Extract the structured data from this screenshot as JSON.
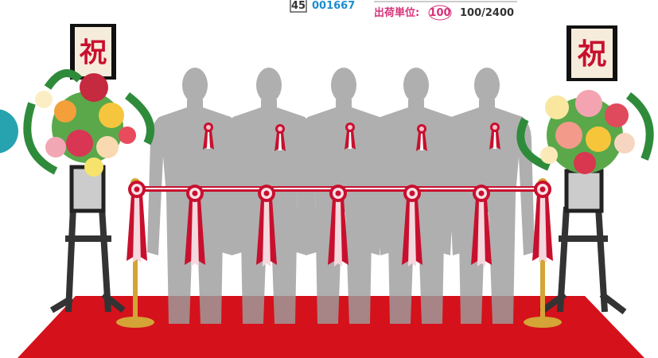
{
  "header": {
    "page_number": "45",
    "product_code": "001667",
    "shipping_unit_label": "出荷単位:",
    "shipping_unit": "100",
    "quantity": "100/2400"
  },
  "signs": [
    "祝",
    "祝"
  ]
}
